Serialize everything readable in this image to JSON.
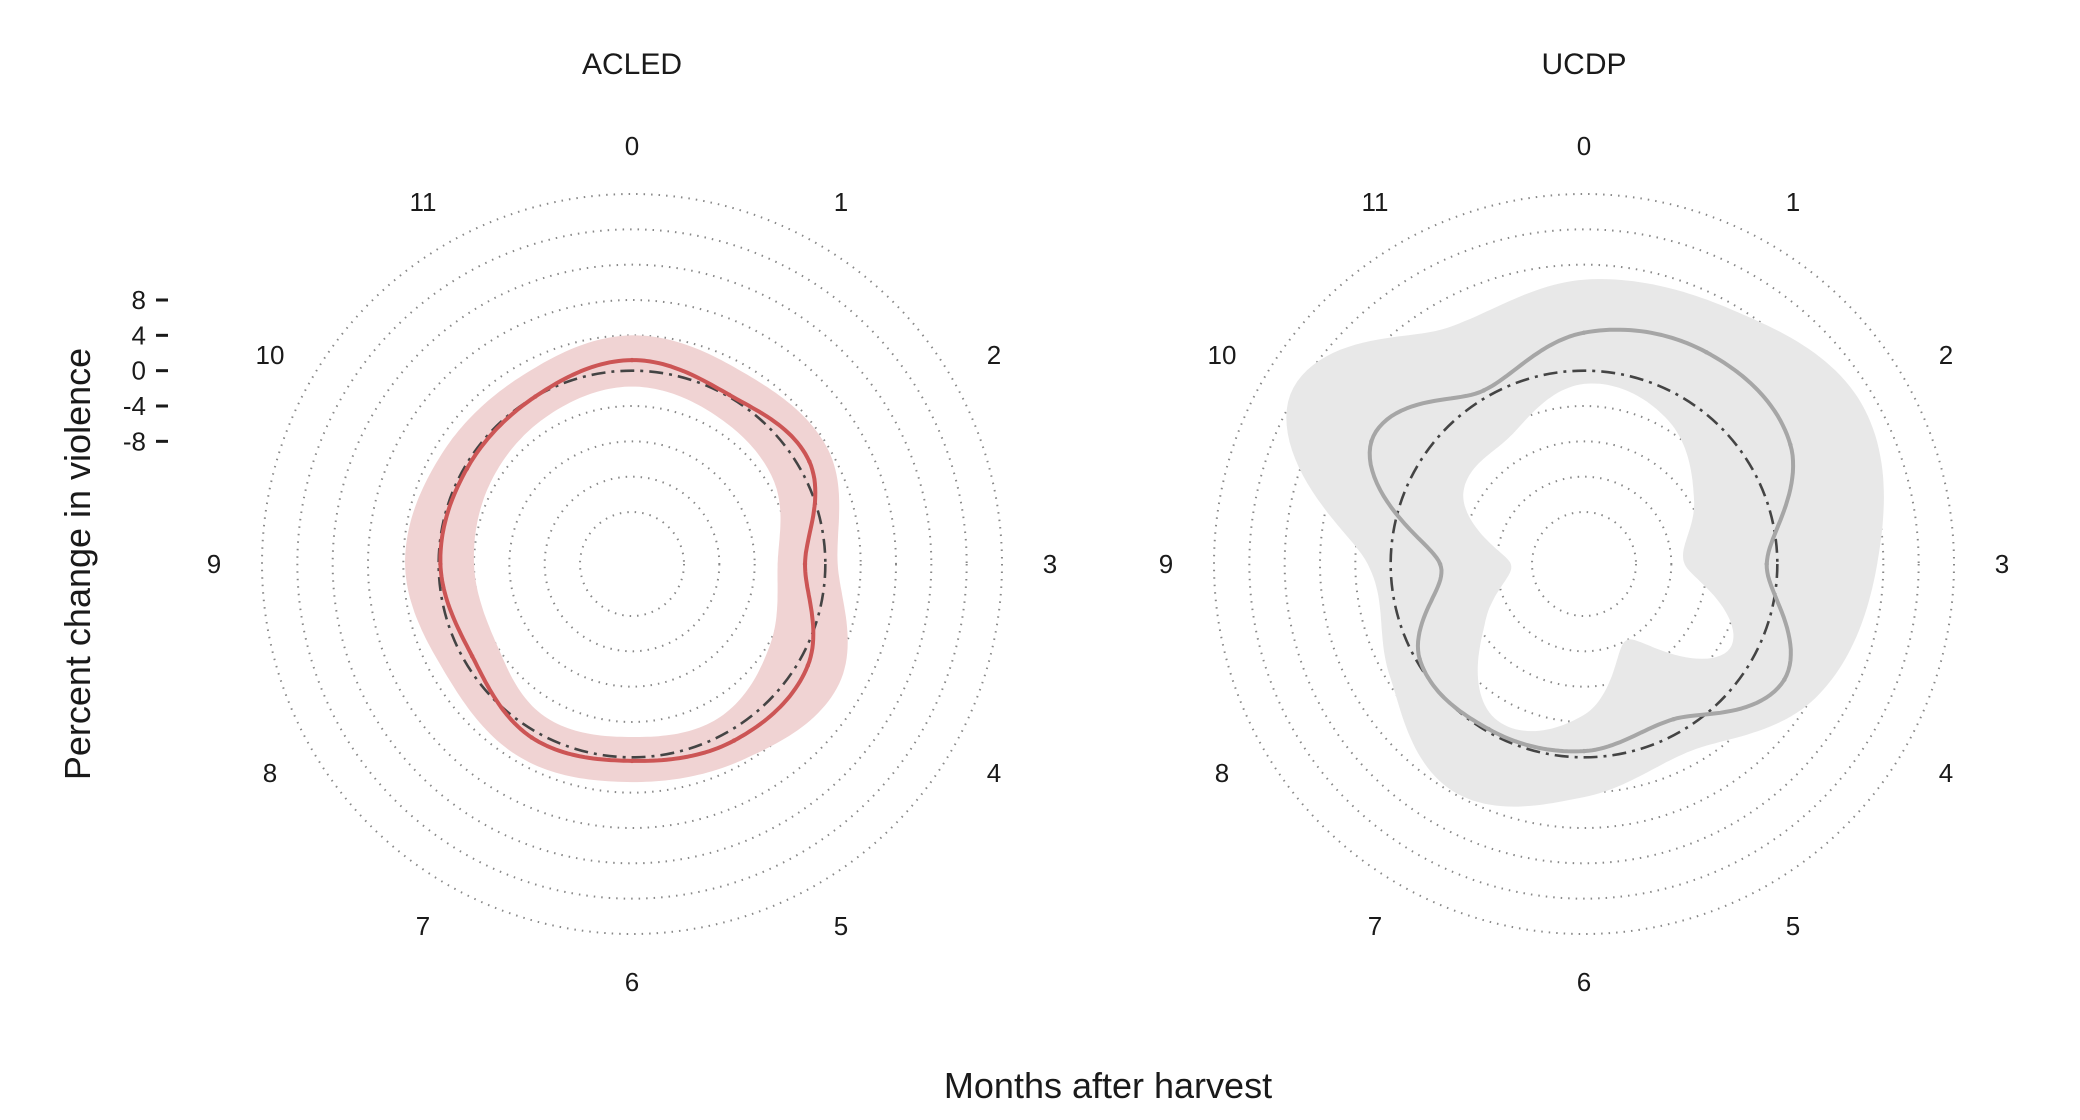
{
  "chart_data": [
    {
      "type": "polar-line",
      "title": "ACLED",
      "categories": [
        "0",
        "1",
        "2",
        "3",
        "4",
        "5",
        "6",
        "7",
        "8",
        "9",
        "10",
        "11"
      ],
      "values": [
        1.2,
        0.2,
        1.3,
        -2.3,
        1.1,
        1.2,
        0.4,
        0.8,
        -1.0,
        -0.2,
        -0.3,
        0.0
      ],
      "ci_lower": [
        -1.8,
        -2.6,
        -3.3,
        -5.4,
        -3.8,
        -1.9,
        -2.3,
        -2.0,
        -4.1,
        -4.0,
        -3.4,
        -2.6
      ],
      "ci_upper": [
        4.0,
        3.2,
        3.8,
        1.4,
        5.2,
        3.6,
        2.8,
        3.4,
        2.6,
        3.8,
        3.0,
        2.8
      ],
      "reference": 0,
      "colors": {
        "line": "#cc5555",
        "band": "#f0d3d3",
        "reference": "#444444"
      }
    },
    {
      "type": "polar-line",
      "title": "UCDP",
      "categories": [
        "0",
        "1",
        "2",
        "3",
        "4",
        "5",
        "6",
        "7",
        "8",
        "9",
        "10",
        "11"
      ],
      "values": [
        4.3,
        5.8,
        5.1,
        -1.2,
        4.3,
        -1.6,
        -0.7,
        -0.3,
        -0.4,
        -5.6,
        5.9,
        0.8
      ],
      "ci_lower": [
        -1.5,
        -3.0,
        -7.5,
        -10.5,
        -2.8,
        -12.0,
        -4.8,
        -1.7,
        -9.0,
        -13.6,
        -6.1,
        -5.2
      ],
      "ci_upper": [
        10.3,
        11.4,
        14.4,
        11.3,
        8.4,
        2.5,
        4.5,
        7.8,
        3.5,
        2.6,
        16.5,
        9.0
      ],
      "reference": 0,
      "colors": {
        "line": "#a6a6a6",
        "band": "#e8e8e8",
        "reference": "#444444"
      }
    }
  ],
  "ylabel": "Percent change in violence",
  "xlabel": "Months after harvest",
  "yticks": [
    "8",
    "4",
    "0",
    "-4",
    "-8"
  ],
  "ylim": [
    -16,
    20
  ]
}
